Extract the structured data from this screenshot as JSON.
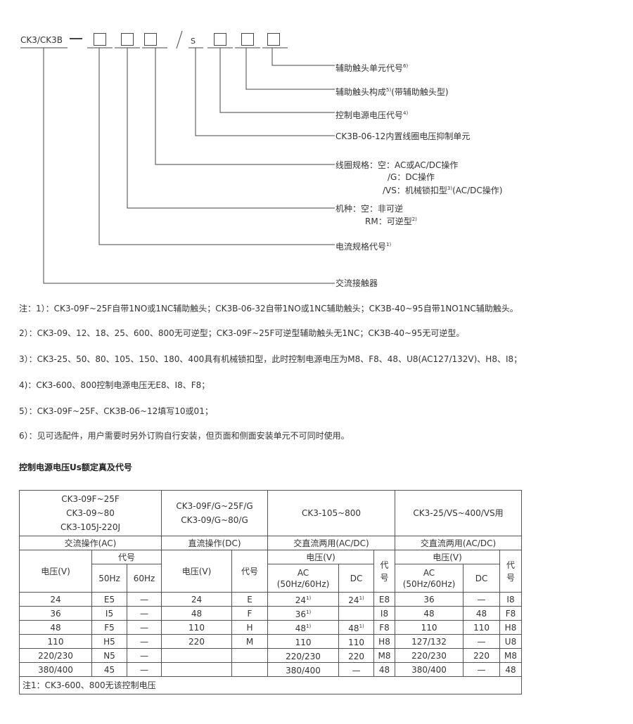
{
  "diagram": {
    "model_prefix": "CK3/CK3B",
    "dash": "—",
    "slash": "/",
    "s": "S",
    "labels": [
      {
        "text": "辅助触头单元代号",
        "note": "6)"
      },
      {
        "text": "辅助触头构成",
        "note": "5)",
        "suffix": "(带辅助触头型)"
      },
      {
        "text": "控制电源电压代号",
        "note": "4)"
      },
      {
        "text": "CK3B-06-12内置线圈电压抑制单元"
      },
      {
        "text": "线圈规格：空：AC或AC/DC操作",
        "line2": "/G：DC操作",
        "line3": "/VS：机械锁扣型",
        "line3_note": "3)",
        "line3_suffix": "(AC/DC操作)"
      },
      {
        "text": "机种：空：非可逆",
        "line2": "RM：可逆型",
        "line2_note": "2)"
      },
      {
        "text": "电流规格代号",
        "note": "1)"
      },
      {
        "text": "交流接触器"
      }
    ]
  },
  "notes": [
    "注：1）：CK3-09F~25F自带1NO或1NC辅助触头；CK3B-06-32自带1NO或1NC辅助触头；CK3B-40~95自带1NO1NC辅助触头。",
    "2）：CK3-09、12、18、25、600、800无可逆型；CK3-09F~25F可逆型辅助触头无1NC；CK3B-40~95无可逆型。",
    "3）：CK3-25、50、80、105、150、180、400具有机械锁扣型，此时控制电源电压为M8、F8、48、U8(AC127/132V)、H8、I8；",
    "4)：CK3-600、800控制电源电压无E8、I8、F8；",
    "5）：CK3-09F~25F、CK3B-06~12填写10或01；",
    "6）：见可选配件，用户需要时另外订购自行安装，但页面和侧面安装单元不可同时使用。"
  ],
  "section_title": "控制电源电压Us额定真及代号",
  "table": {
    "groups": [
      {
        "models": [
          "CK3-09F~25F",
          "CK3-09~80",
          "CK3-105J-220J"
        ],
        "type": "交流操作(AC)"
      },
      {
        "models": [
          "CK3-09F/G~25F/G",
          "CK3-09/G~80/G"
        ],
        "type": "直流操作(DC)"
      },
      {
        "models": [
          "CK3-105~800"
        ],
        "type": "交直流两用(AC/DC)"
      },
      {
        "models": [
          "CK3-25/VS~400/VS用"
        ],
        "type": "交直流两用(AC/DC)"
      }
    ],
    "h_voltage": "电压(V)",
    "h_code": "代号",
    "h_50": "50Hz",
    "h_60": "60Hz",
    "h_ac": "AC",
    "h_acfreq": "(50Hz/60Hz)",
    "h_dc": "DC",
    "h_code_v": "代号",
    "rows": [
      [
        "24",
        "E5",
        "—",
        "24",
        "E",
        "24",
        "1)",
        "24",
        "1)",
        "E8",
        "36",
        "—",
        "I8"
      ],
      [
        "36",
        "I5",
        "—",
        "48",
        "F",
        "36",
        "1)",
        "",
        "",
        "I8",
        "48",
        "48",
        "F8"
      ],
      [
        "48",
        "F5",
        "—",
        "110",
        "H",
        "48",
        "1)",
        "48",
        "1)",
        "F8",
        "110",
        "110",
        "H8"
      ],
      [
        "110",
        "H5",
        "—",
        "220",
        "M",
        "110",
        "",
        "110",
        "",
        "H8",
        "127/132",
        "—",
        "U8"
      ],
      [
        "220/230",
        "N5",
        "—",
        "",
        "",
        "220/230",
        "",
        "220",
        "",
        "M8",
        "220/230",
        "220",
        "M8"
      ],
      [
        "380/400",
        "45",
        "—",
        "",
        "",
        "380/400",
        "",
        "—",
        "",
        "48",
        "380/400",
        "—",
        "48"
      ]
    ],
    "footnote": "注1：CK3-600、800无该控制电压"
  }
}
